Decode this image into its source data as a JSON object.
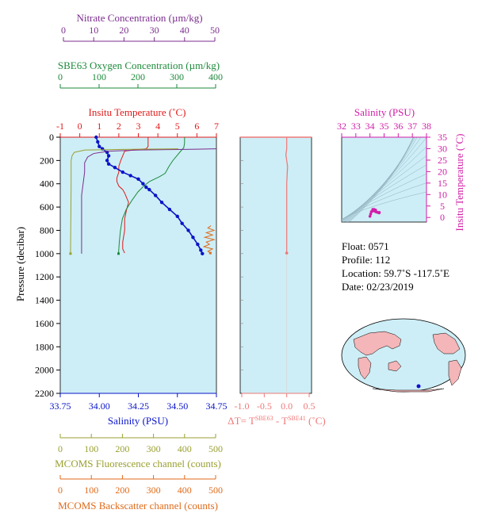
{
  "colors": {
    "nitrate": "#7b2d8e",
    "oxygen": "#1e8a3c",
    "temperature": "#e01a1a",
    "salinity": "#0a14c8",
    "fluorescence": "#9aa030",
    "backscatter": "#e06a1a",
    "ts_magenta": "#d21ea8",
    "plot_bg": "#cdeef6",
    "delta": "#f07878"
  },
  "axes": {
    "nitrate": {
      "label": "Nitrate Concentration (µm/kg)",
      "range": [
        0,
        50
      ],
      "ticks": [
        "0",
        "10",
        "20",
        "30",
        "40",
        "50"
      ]
    },
    "oxygen": {
      "label": "SBE63 Oxygen Concentration (µm/kg)",
      "range": [
        0,
        400
      ],
      "ticks": [
        "0",
        "100",
        "200",
        "300",
        "400"
      ]
    },
    "temperature": {
      "label": "Insitu Temperature (˚C)",
      "range": [
        -1,
        7
      ],
      "ticks": [
        "-1",
        "0",
        "1",
        "2",
        "3",
        "4",
        "5",
        "6",
        "7"
      ]
    },
    "salinity": {
      "label": "Salinity (PSU)",
      "range": [
        33.75,
        34.75
      ],
      "ticks": [
        "33.75",
        "34.00",
        "34.25",
        "34.50",
        "34.75"
      ]
    },
    "pressure": {
      "label": "Pressure (decibar)",
      "range": [
        0,
        2200
      ],
      "reversed": true,
      "ticks": [
        "0",
        "200",
        "400",
        "600",
        "800",
        "1000",
        "1200",
        "1400",
        "1600",
        "1800",
        "2000",
        "2200"
      ]
    },
    "delta": {
      "label_prefix": "ΔT= T",
      "sup1": "SBE63",
      "label_mid": " - T",
      "sup2": "SBE41",
      "label_suffix": " (˚C)",
      "range": [
        -1.0,
        0.5
      ],
      "ticks": [
        "-1.0",
        "-0.5",
        "0.0",
        "0.5"
      ]
    },
    "fluorescence": {
      "label": "MCOMS Fluorescence channel (counts)",
      "range": [
        0,
        500
      ],
      "ticks": [
        "0",
        "100",
        "200",
        "300",
        "400",
        "500"
      ]
    },
    "backscatter": {
      "label": "MCOMS Backscatter channel (counts)",
      "range": [
        0,
        500
      ],
      "ticks": [
        "0",
        "100",
        "200",
        "300",
        "400",
        "500"
      ]
    },
    "ts_salinity": {
      "label": "Salinity (PSU)",
      "range": [
        32,
        38
      ],
      "ticks": [
        "32",
        "33",
        "34",
        "35",
        "36",
        "37",
        "38"
      ]
    },
    "ts_temperature": {
      "label": "Insitu Temperature (˚C)",
      "range": [
        -2,
        35
      ],
      "ticks": [
        "0",
        "5",
        "10",
        "15",
        "20",
        "25",
        "30",
        "35"
      ]
    }
  },
  "chart_data": [
    {
      "type": "line",
      "pressure_axis": [
        0,
        2200
      ],
      "series": [
        {
          "name": "Insitu Temperature",
          "x_axis": "temperature",
          "points": [
            [
              3.5,
              0
            ],
            [
              3.5,
              80
            ],
            [
              3.4,
              100
            ],
            [
              2.7,
              110
            ],
            [
              2.3,
              120
            ],
            [
              2.2,
              160
            ],
            [
              2.1,
              200
            ],
            [
              2.0,
              250
            ],
            [
              2.0,
              300
            ],
            [
              1.9,
              350
            ],
            [
              1.9,
              380
            ],
            [
              2.0,
              420
            ],
            [
              2.2,
              450
            ],
            [
              2.3,
              480
            ],
            [
              2.4,
              520
            ],
            [
              2.5,
              560
            ],
            [
              2.4,
              620
            ],
            [
              2.3,
              700
            ],
            [
              2.3,
              800
            ],
            [
              2.2,
              900
            ],
            [
              2.2,
              960
            ],
            [
              2.3,
              995
            ]
          ]
        },
        {
          "name": "Salinity",
          "x_axis": "salinity",
          "points": [
            [
              33.98,
              0
            ],
            [
              33.99,
              40
            ],
            [
              34.0,
              80
            ],
            [
              34.02,
              100
            ],
            [
              34.05,
              130
            ],
            [
              34.06,
              160
            ],
            [
              34.05,
              200
            ],
            [
              34.06,
              230
            ],
            [
              34.1,
              260
            ],
            [
              34.15,
              300
            ],
            [
              34.2,
              330
            ],
            [
              34.25,
              360
            ],
            [
              34.28,
              400
            ],
            [
              34.3,
              430
            ],
            [
              34.32,
              450
            ],
            [
              34.36,
              500
            ],
            [
              34.4,
              560
            ],
            [
              34.45,
              620
            ],
            [
              34.5,
              680
            ],
            [
              34.53,
              740
            ],
            [
              34.57,
              800
            ],
            [
              34.6,
              860
            ],
            [
              34.63,
              920
            ],
            [
              34.65,
              970
            ],
            [
              34.66,
              1000
            ]
          ]
        },
        {
          "name": "SBE63 Oxygen",
          "x_axis": "oxygen",
          "points": [
            [
              320,
              0
            ],
            [
              320,
              50
            ],
            [
              318,
              90
            ],
            [
              310,
              120
            ],
            [
              290,
              200
            ],
            [
              280,
              250
            ],
            [
              270,
              310
            ],
            [
              255,
              340
            ],
            [
              230,
              380
            ],
            [
              215,
              420
            ],
            [
              200,
              470
            ],
            [
              185,
              540
            ],
            [
              170,
              620
            ],
            [
              160,
              700
            ],
            [
              155,
              800
            ],
            [
              152,
              900
            ],
            [
              150,
              1000
            ]
          ]
        },
        {
          "name": "Nitrate",
          "x_axis": "nitrate",
          "points": [
            [
              52,
              100
            ],
            [
              40,
              105
            ],
            [
              25,
              110
            ],
            [
              15,
              120
            ],
            [
              10,
              140
            ],
            [
              8,
              170
            ],
            [
              7,
              220
            ],
            [
              7,
              300
            ],
            [
              6,
              500
            ],
            [
              6,
              800
            ],
            [
              6,
              1000
            ]
          ]
        },
        {
          "name": "MCOMS Fluorescence",
          "x_axis": "fluorescence",
          "points": [
            [
              380,
              100
            ],
            [
              200,
              105
            ],
            [
              80,
              110
            ],
            [
              45,
              130
            ],
            [
              38,
              160
            ],
            [
              35,
              200
            ],
            [
              35,
              400
            ],
            [
              34,
              700
            ],
            [
              33,
              1000
            ]
          ]
        },
        {
          "name": "MCOMS Backscatter",
          "x_axis": "backscatter",
          "points": [
            [
              485,
              760
            ],
            [
              475,
              780
            ],
            [
              495,
              800
            ],
            [
              470,
              820
            ],
            [
              490,
              840
            ],
            [
              465,
              860
            ],
            [
              495,
              880
            ],
            [
              470,
              900
            ],
            [
              480,
              920
            ],
            [
              462,
              940
            ],
            [
              490,
              960
            ],
            [
              475,
              980
            ],
            [
              483,
              995
            ]
          ]
        }
      ]
    },
    {
      "type": "line",
      "x_axis": "delta",
      "series": [
        {
          "name": "Delta T",
          "points": [
            [
              0.0,
              0
            ],
            [
              0.0,
              100
            ],
            [
              -0.02,
              150
            ],
            [
              0.02,
              250
            ],
            [
              0.0,
              400
            ],
            [
              0.0,
              600
            ],
            [
              0.0,
              800
            ],
            [
              0.0,
              995
            ]
          ]
        }
      ]
    },
    {
      "type": "scatter",
      "x_axis": "ts_salinity",
      "y_axis": "ts_temperature",
      "series": [
        {
          "name": "T-S",
          "points": [
            [
              34.0,
              0.5
            ],
            [
              34.05,
              1.5
            ],
            [
              34.1,
              2.5
            ],
            [
              34.2,
              3.5
            ],
            [
              34.3,
              3.0
            ],
            [
              34.4,
              2.5
            ],
            [
              34.5,
              2.3
            ],
            [
              34.6,
              2.1
            ],
            [
              34.65,
              2.0
            ],
            [
              34.66,
              2.2
            ],
            [
              34.4,
              3.2
            ],
            [
              34.3,
              3.5
            ],
            [
              34.2,
              2.8
            ]
          ]
        }
      ]
    }
  ],
  "info": {
    "float": "Float:  0571",
    "profile": "Profile:  112",
    "location": "Location:  59.7˚S  -117.5˚E",
    "date": "Date:  02/23/2019"
  },
  "map": {
    "marker_lon": -117.5,
    "marker_lat": -59.7,
    "marker_color": "#1010d0"
  }
}
